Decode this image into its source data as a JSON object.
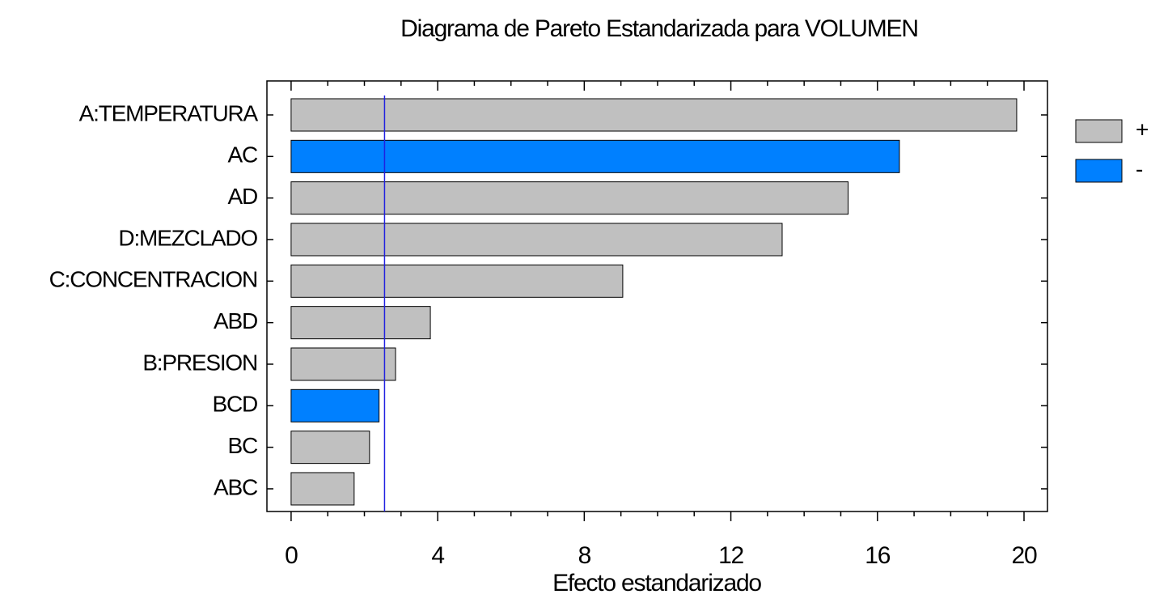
{
  "chart_data": {
    "type": "bar",
    "orientation": "horizontal",
    "title": "Diagrama de Pareto Estandarizada para VOLUMEN",
    "x_label": "Efecto estandarizado",
    "categories": [
      "A:TEMPERATURA",
      "AC",
      "AD",
      "D:MEZCLADO",
      "C:CONCENTRACION",
      "ABD",
      "B:PRESION",
      "BCD",
      "BC",
      "ABC"
    ],
    "series": [
      {
        "name": "+",
        "color": "#c0c0c0",
        "values": [
          19.8,
          null,
          15.2,
          13.4,
          9.05,
          3.8,
          2.85,
          null,
          2.14,
          1.72
        ]
      },
      {
        "name": "-",
        "color": "#0080ff",
        "values": [
          null,
          16.6,
          null,
          null,
          null,
          null,
          null,
          2.4,
          null,
          null
        ]
      }
    ],
    "reference_line": {
      "value": 2.55,
      "color": "#2020e0"
    },
    "xlim": [
      -0.66,
      20.64
    ],
    "xticks": [
      0,
      4,
      8,
      12,
      16,
      20
    ],
    "xminorticks": [
      1,
      2,
      3,
      5,
      6,
      7,
      9,
      10,
      11,
      13,
      14,
      15,
      17,
      18,
      19
    ],
    "legend": "right"
  }
}
